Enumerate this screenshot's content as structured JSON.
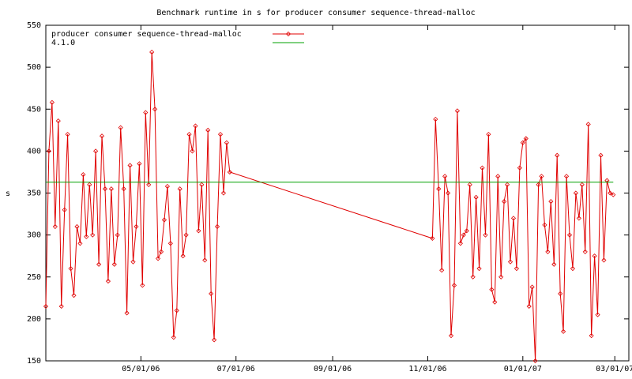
{
  "chart_data": {
    "type": "line",
    "title": "Benchmark runtime in s for producer consumer sequence-thread-malloc",
    "y_label": "s",
    "legend": "top-left",
    "xlim": [
      "2006-03-01",
      "2007-03-10"
    ],
    "xticks": [
      {
        "value": "2006-05-01",
        "label": "05/01/06"
      },
      {
        "value": "2006-07-01",
        "label": "07/01/06"
      },
      {
        "value": "2006-09-01",
        "label": "09/01/06"
      },
      {
        "value": "2006-11-01",
        "label": "11/01/06"
      },
      {
        "value": "2007-01-01",
        "label": "01/01/07"
      },
      {
        "value": "2007-03-01",
        "label": "03/01/07"
      }
    ],
    "ylim": [
      150,
      550
    ],
    "yticks": [
      150,
      200,
      250,
      300,
      350,
      400,
      450,
      500,
      550
    ],
    "series": [
      {
        "name": "producer consumer sequence-thread-malloc",
        "color": "#e00000",
        "markers": true,
        "x": [
          "2006-03-01",
          "2006-03-03",
          "2006-03-05",
          "2006-03-07",
          "2006-03-09",
          "2006-03-11",
          "2006-03-13",
          "2006-03-15",
          "2006-03-17",
          "2006-03-19",
          "2006-03-21",
          "2006-03-23",
          "2006-03-25",
          "2006-03-27",
          "2006-03-29",
          "2006-03-31",
          "2006-04-02",
          "2006-04-04",
          "2006-04-06",
          "2006-04-08",
          "2006-04-10",
          "2006-04-12",
          "2006-04-14",
          "2006-04-16",
          "2006-04-18",
          "2006-04-20",
          "2006-04-22",
          "2006-04-24",
          "2006-04-26",
          "2006-04-28",
          "2006-04-30",
          "2006-05-02",
          "2006-05-04",
          "2006-05-06",
          "2006-05-08",
          "2006-05-10",
          "2006-05-12",
          "2006-05-14",
          "2006-05-16",
          "2006-05-18",
          "2006-05-20",
          "2006-05-22",
          "2006-05-24",
          "2006-05-26",
          "2006-05-28",
          "2006-05-30",
          "2006-06-01",
          "2006-06-03",
          "2006-06-05",
          "2006-06-07",
          "2006-06-09",
          "2006-06-11",
          "2006-06-13",
          "2006-06-15",
          "2006-06-17",
          "2006-06-19",
          "2006-06-21",
          "2006-06-23",
          "2006-06-25",
          "2006-06-27",
          "2006-11-04",
          "2006-11-06",
          "2006-11-08",
          "2006-11-10",
          "2006-11-12",
          "2006-11-14",
          "2006-11-16",
          "2006-11-18",
          "2006-11-20",
          "2006-11-22",
          "2006-11-24",
          "2006-11-26",
          "2006-11-28",
          "2006-11-30",
          "2006-12-02",
          "2006-12-04",
          "2006-12-06",
          "2006-12-08",
          "2006-12-10",
          "2006-12-12",
          "2006-12-14",
          "2006-12-16",
          "2006-12-18",
          "2006-12-20",
          "2006-12-22",
          "2006-12-24",
          "2006-12-26",
          "2006-12-28",
          "2006-12-30",
          "2007-01-01",
          "2007-01-03",
          "2007-01-05",
          "2007-01-07",
          "2007-01-09",
          "2007-01-11",
          "2007-01-13",
          "2007-01-15",
          "2007-01-17",
          "2007-01-19",
          "2007-01-21",
          "2007-01-23",
          "2007-01-25",
          "2007-01-27",
          "2007-01-29",
          "2007-01-31",
          "2007-02-02",
          "2007-02-04",
          "2007-02-06",
          "2007-02-08",
          "2007-02-10",
          "2007-02-12",
          "2007-02-14",
          "2007-02-16",
          "2007-02-18",
          "2007-02-20",
          "2007-02-22",
          "2007-02-24",
          "2007-02-26",
          "2007-02-28"
        ],
        "values": [
          215,
          400,
          458,
          310,
          436,
          215,
          330,
          420,
          260,
          228,
          310,
          290,
          372,
          298,
          360,
          300,
          400,
          265,
          418,
          355,
          245,
          355,
          265,
          300,
          428,
          355,
          207,
          383,
          268,
          310,
          385,
          240,
          446,
          360,
          518,
          450,
          272,
          280,
          318,
          358,
          290,
          178,
          210,
          355,
          275,
          300,
          420,
          400,
          430,
          305,
          360,
          270,
          425,
          230,
          175,
          310,
          420,
          350,
          410,
          375,
          296,
          438,
          355,
          258,
          370,
          350,
          180,
          240,
          448,
          290,
          300,
          305,
          360,
          250,
          345,
          260,
          380,
          300,
          420,
          235,
          220,
          370,
          250,
          340,
          360,
          268,
          320,
          260,
          380,
          410,
          415,
          215,
          238,
          150,
          360,
          370,
          312,
          280,
          340,
          265,
          395,
          230,
          185,
          370,
          300,
          260,
          350,
          320,
          360,
          280,
          432,
          180,
          275,
          205,
          395,
          270,
          365,
          350,
          348
        ]
      },
      {
        "name": "4.1.0",
        "color": "#00a000",
        "markers": false,
        "x": [
          "2006-03-01",
          "2007-02-28"
        ],
        "values": [
          363,
          363
        ]
      }
    ]
  }
}
